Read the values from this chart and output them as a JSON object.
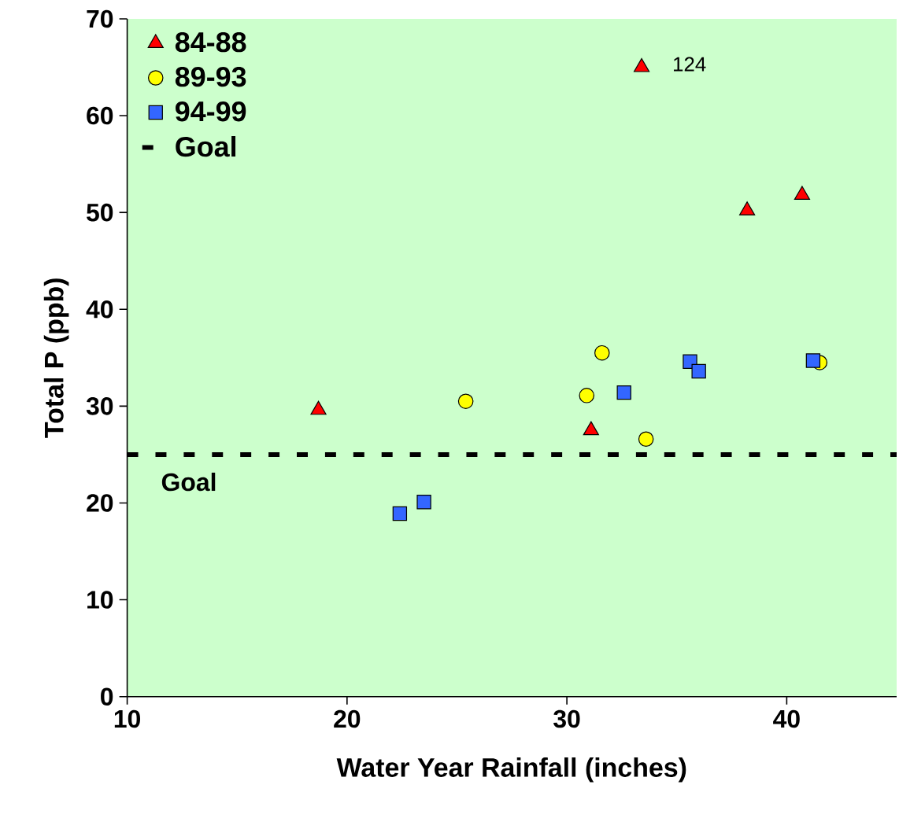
{
  "chart_data": {
    "type": "scatter",
    "xlabel": "Water Year Rainfall (inches)",
    "ylabel": "Total P (ppb)",
    "series": [
      {
        "name": "84-88",
        "color": "#ff0000",
        "marker": "triangle",
        "x": [
          18.7,
          31.1,
          33.4,
          38.2,
          40.7
        ],
        "values": [
          29.6,
          27.5,
          65,
          50.2,
          51.8
        ]
      },
      {
        "name": "89-93",
        "color": "#ffff00",
        "marker": "circle",
        "x": [
          25.4,
          30.9,
          31.6,
          33.6,
          41.5
        ],
        "values": [
          30.5,
          31.1,
          35.5,
          26.6,
          34.5
        ]
      },
      {
        "name": "94-99",
        "color": "#3366ff",
        "marker": "square",
        "x": [
          22.4,
          23.5,
          32.6,
          35.6,
          36.0,
          41.2
        ],
        "values": [
          18.9,
          20.1,
          31.4,
          34.6,
          33.6,
          34.7
        ]
      }
    ],
    "ref_lines": [
      {
        "axis": "y",
        "value": 25,
        "label": "Goal",
        "color": "#000000",
        "line_style": "dashed"
      }
    ],
    "annotations": [
      {
        "text": "124",
        "x": 33.4,
        "y": 65
      }
    ],
    "xlim": [
      10,
      45
    ],
    "xticks": [
      10,
      20,
      30,
      40
    ],
    "ylim": [
      0,
      70
    ],
    "yticks": [
      0,
      10,
      20,
      30,
      40,
      50,
      60,
      70
    ],
    "legend": "top left",
    "grid": false
  }
}
